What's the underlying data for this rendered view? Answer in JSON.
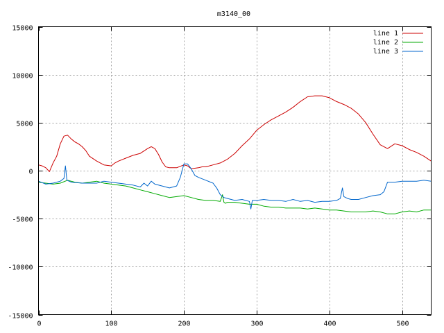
{
  "chart_data": {
    "type": "line",
    "title": "m3140_00",
    "xlabel": "",
    "ylabel": "",
    "xlim": [
      0,
      540
    ],
    "ylim": [
      -15000,
      15000
    ],
    "xticks": [
      0,
      100,
      200,
      300,
      400,
      500
    ],
    "yticks": [
      -15000,
      -10000,
      -5000,
      0,
      5000,
      10000,
      15000
    ],
    "grid": true,
    "legend_position": "top-right",
    "series": [
      {
        "name": "line 1",
        "color": "#cc0000",
        "x": [
          0,
          5,
          10,
          15,
          20,
          25,
          30,
          35,
          40,
          45,
          50,
          55,
          60,
          65,
          70,
          80,
          90,
          100,
          105,
          110,
          120,
          130,
          140,
          150,
          155,
          160,
          165,
          170,
          175,
          180,
          190,
          200,
          205,
          210,
          220,
          225,
          230,
          240,
          250,
          260,
          270,
          280,
          290,
          300,
          310,
          320,
          330,
          340,
          350,
          360,
          370,
          380,
          390,
          400,
          410,
          420,
          430,
          440,
          450,
          460,
          470,
          480,
          490,
          500,
          510,
          520,
          530,
          540
        ],
        "y": [
          600,
          500,
          300,
          -100,
          800,
          1500,
          2800,
          3600,
          3700,
          3300,
          3000,
          2800,
          2500,
          2100,
          1500,
          1000,
          600,
          500,
          800,
          1000,
          1300,
          1600,
          1800,
          2300,
          2500,
          2300,
          1700,
          900,
          400,
          300,
          300,
          600,
          500,
          200,
          300,
          400,
          400,
          600,
          800,
          1200,
          1800,
          2600,
          3300,
          4200,
          4800,
          5300,
          5700,
          6100,
          6600,
          7200,
          7700,
          7800,
          7800,
          7600,
          7200,
          6900,
          6500,
          5900,
          5000,
          3800,
          2700,
          2300,
          2800,
          2600,
          2200,
          1900,
          1500,
          1000
        ]
      },
      {
        "name": "line 2",
        "color": "#00aa00",
        "x": [
          0,
          10,
          20,
          30,
          40,
          50,
          60,
          70,
          80,
          90,
          100,
          110,
          120,
          130,
          140,
          150,
          160,
          170,
          180,
          190,
          200,
          210,
          220,
          230,
          240,
          250,
          253,
          255,
          257,
          260,
          270,
          280,
          290,
          300,
          310,
          320,
          330,
          340,
          350,
          360,
          370,
          380,
          390,
          400,
          410,
          420,
          430,
          440,
          450,
          460,
          470,
          480,
          490,
          500,
          510,
          520,
          530,
          540
        ],
        "y": [
          -1200,
          -1300,
          -1400,
          -1300,
          -1000,
          -1200,
          -1300,
          -1200,
          -1100,
          -1300,
          -1400,
          -1500,
          -1600,
          -1800,
          -2000,
          -2200,
          -2400,
          -2600,
          -2800,
          -2700,
          -2600,
          -2800,
          -3000,
          -3100,
          -3100,
          -3200,
          -2500,
          -3300,
          -3400,
          -3300,
          -3300,
          -3400,
          -3500,
          -3500,
          -3700,
          -3800,
          -3800,
          -3900,
          -3900,
          -3900,
          -4000,
          -3900,
          -4000,
          -4100,
          -4100,
          -4200,
          -4300,
          -4300,
          -4300,
          -4200,
          -4300,
          -4500,
          -4500,
          -4300,
          -4200,
          -4300,
          -4100,
          -4100
        ]
      },
      {
        "name": "line 3",
        "color": "#0066cc",
        "x": [
          0,
          10,
          20,
          30,
          35,
          37,
          39,
          45,
          60,
          70,
          80,
          90,
          100,
          110,
          120,
          130,
          140,
          145,
          150,
          155,
          160,
          170,
          180,
          190,
          195,
          200,
          205,
          210,
          215,
          220,
          230,
          240,
          245,
          250,
          255,
          260,
          270,
          280,
          290,
          292,
          294,
          300,
          310,
          320,
          330,
          340,
          350,
          360,
          370,
          380,
          390,
          400,
          410,
          415,
          418,
          420,
          425,
          430,
          440,
          450,
          460,
          470,
          475,
          480,
          490,
          500,
          510,
          520,
          530,
          540
        ],
        "y": [
          -1100,
          -1400,
          -1300,
          -1100,
          -800,
          500,
          -1000,
          -1200,
          -1300,
          -1300,
          -1300,
          -1100,
          -1200,
          -1300,
          -1400,
          -1500,
          -1700,
          -1300,
          -1600,
          -1100,
          -1400,
          -1600,
          -1800,
          -1600,
          -700,
          700,
          700,
          200,
          -500,
          -700,
          -1000,
          -1300,
          -1800,
          -2500,
          -2800,
          -2900,
          -3100,
          -3000,
          -3200,
          -4000,
          -3100,
          -3100,
          -3000,
          -3100,
          -3100,
          -3200,
          -3000,
          -3200,
          -3100,
          -3300,
          -3200,
          -3200,
          -3100,
          -2900,
          -1800,
          -2700,
          -2900,
          -3000,
          -3000,
          -2800,
          -2600,
          -2500,
          -2200,
          -1200,
          -1200,
          -1100,
          -1100,
          -1100,
          -1000,
          -1100
        ]
      }
    ]
  }
}
